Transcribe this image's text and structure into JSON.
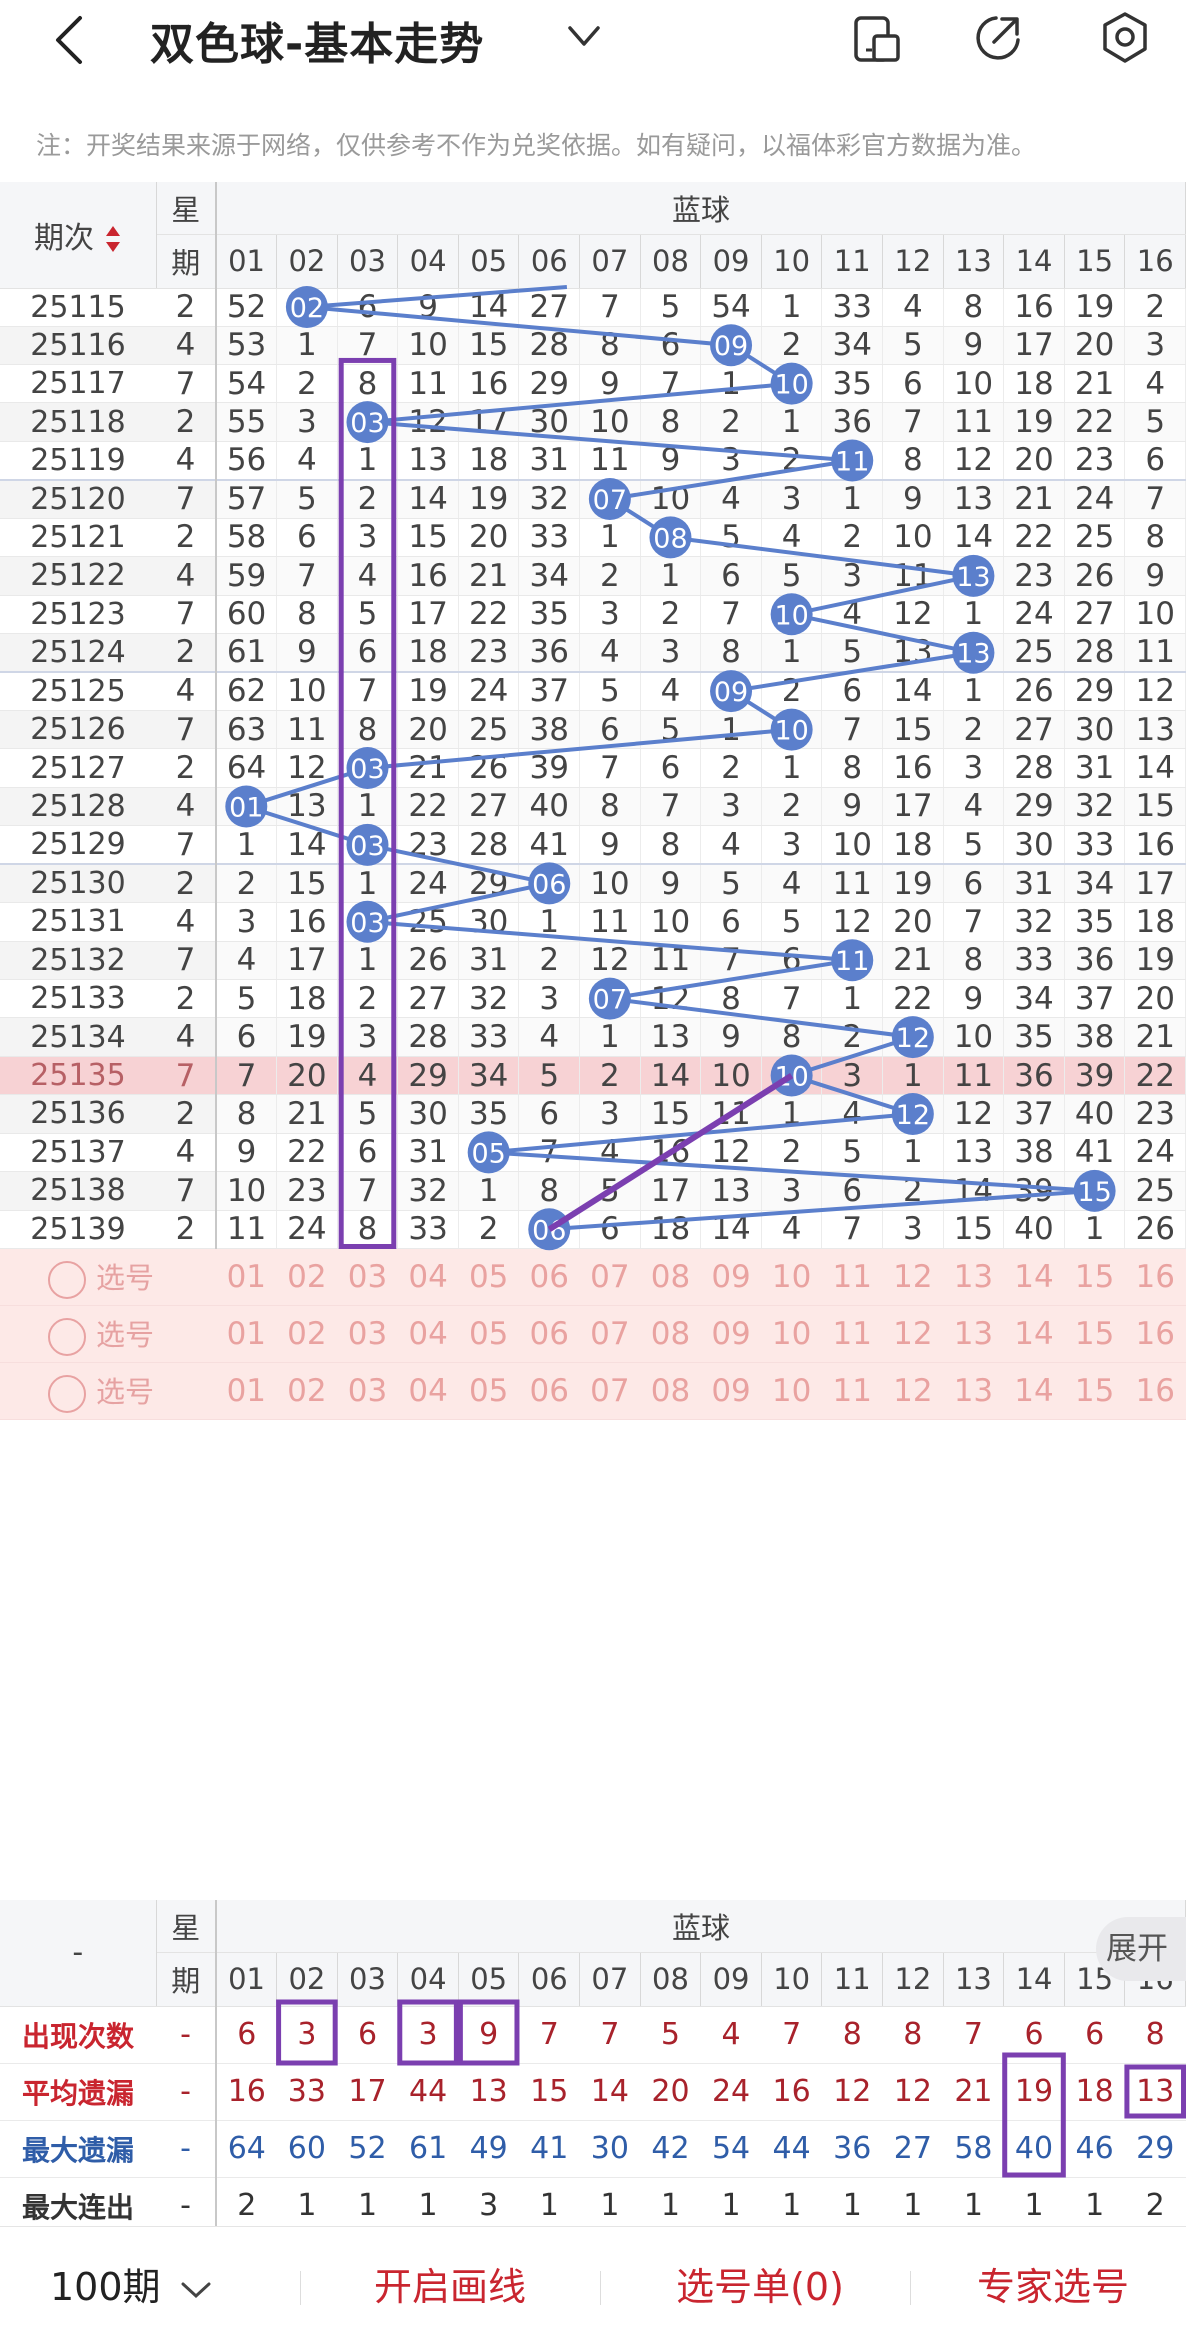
{
  "header": {
    "title": "双色球-基本走势"
  },
  "note": "注：开奖结果来源于网络，仅供参考不作为兑奖依据。如有疑问，以福体彩官方数据为准。",
  "table": {
    "col_period": "期次",
    "col_week_1": "星",
    "col_week_2": "期",
    "group": "蓝球",
    "numbers": [
      "01",
      "02",
      "03",
      "04",
      "05",
      "06",
      "07",
      "08",
      "09",
      "10",
      "11",
      "12",
      "13",
      "14",
      "15",
      "16"
    ],
    "rows": [
      {
        "period": "25115",
        "week": "2",
        "cells": [
          "52",
          "02",
          "6",
          "9",
          "14",
          "27",
          "7",
          "5",
          "54",
          "1",
          "33",
          "4",
          "8",
          "16",
          "19",
          "2"
        ],
        "ball": 2
      },
      {
        "period": "25116",
        "week": "4",
        "cells": [
          "53",
          "1",
          "7",
          "10",
          "15",
          "28",
          "8",
          "6",
          "09",
          "2",
          "34",
          "5",
          "9",
          "17",
          "20",
          "3"
        ],
        "ball": 9
      },
      {
        "period": "25117",
        "week": "7",
        "cells": [
          "54",
          "2",
          "8",
          "11",
          "16",
          "29",
          "9",
          "7",
          "1",
          "10",
          "35",
          "6",
          "10",
          "18",
          "21",
          "4"
        ],
        "ball": 10
      },
      {
        "period": "25118",
        "week": "2",
        "cells": [
          "55",
          "3",
          "03",
          "12",
          "17",
          "30",
          "10",
          "8",
          "2",
          "1",
          "36",
          "7",
          "11",
          "19",
          "22",
          "5"
        ],
        "ball": 3
      },
      {
        "period": "25119",
        "week": "4",
        "cells": [
          "56",
          "4",
          "1",
          "13",
          "18",
          "31",
          "11",
          "9",
          "3",
          "2",
          "11",
          "8",
          "12",
          "20",
          "23",
          "6"
        ],
        "ball": 11
      },
      {
        "period": "25120",
        "week": "7",
        "cells": [
          "57",
          "5",
          "2",
          "14",
          "19",
          "32",
          "07",
          "10",
          "4",
          "3",
          "1",
          "9",
          "13",
          "21",
          "24",
          "7"
        ],
        "ball": 7
      },
      {
        "period": "25121",
        "week": "2",
        "cells": [
          "58",
          "6",
          "3",
          "15",
          "20",
          "33",
          "1",
          "08",
          "5",
          "4",
          "2",
          "10",
          "14",
          "22",
          "25",
          "8"
        ],
        "ball": 8
      },
      {
        "period": "25122",
        "week": "4",
        "cells": [
          "59",
          "7",
          "4",
          "16",
          "21",
          "34",
          "2",
          "1",
          "6",
          "5",
          "3",
          "11",
          "13",
          "23",
          "26",
          "9"
        ],
        "ball": 13
      },
      {
        "period": "25123",
        "week": "7",
        "cells": [
          "60",
          "8",
          "5",
          "17",
          "22",
          "35",
          "3",
          "2",
          "7",
          "10",
          "4",
          "12",
          "1",
          "24",
          "27",
          "10"
        ],
        "ball": 10
      },
      {
        "period": "25124",
        "week": "2",
        "cells": [
          "61",
          "9",
          "6",
          "18",
          "23",
          "36",
          "4",
          "3",
          "8",
          "1",
          "5",
          "13",
          "13",
          "25",
          "28",
          "11"
        ],
        "ball": 13
      },
      {
        "period": "25125",
        "week": "4",
        "cells": [
          "62",
          "10",
          "7",
          "19",
          "24",
          "37",
          "5",
          "4",
          "09",
          "2",
          "6",
          "14",
          "1",
          "26",
          "29",
          "12"
        ],
        "ball": 9
      },
      {
        "period": "25126",
        "week": "7",
        "cells": [
          "63",
          "11",
          "8",
          "20",
          "25",
          "38",
          "6",
          "5",
          "1",
          "10",
          "7",
          "15",
          "2",
          "27",
          "30",
          "13"
        ],
        "ball": 10
      },
      {
        "period": "25127",
        "week": "2",
        "cells": [
          "64",
          "12",
          "03",
          "21",
          "26",
          "39",
          "7",
          "6",
          "2",
          "1",
          "8",
          "16",
          "3",
          "28",
          "31",
          "14"
        ],
        "ball": 3
      },
      {
        "period": "25128",
        "week": "4",
        "cells": [
          "01",
          "13",
          "1",
          "22",
          "27",
          "40",
          "8",
          "7",
          "3",
          "2",
          "9",
          "17",
          "4",
          "29",
          "32",
          "15"
        ],
        "ball": 1
      },
      {
        "period": "25129",
        "week": "7",
        "cells": [
          "1",
          "14",
          "03",
          "23",
          "28",
          "41",
          "9",
          "8",
          "4",
          "3",
          "10",
          "18",
          "5",
          "30",
          "33",
          "16"
        ],
        "ball": 3
      },
      {
        "period": "25130",
        "week": "2",
        "cells": [
          "2",
          "15",
          "1",
          "24",
          "29",
          "06",
          "10",
          "9",
          "5",
          "4",
          "11",
          "19",
          "6",
          "31",
          "34",
          "17"
        ],
        "ball": 6
      },
      {
        "period": "25131",
        "week": "4",
        "cells": [
          "3",
          "16",
          "03",
          "25",
          "30",
          "1",
          "11",
          "10",
          "6",
          "5",
          "12",
          "20",
          "7",
          "32",
          "35",
          "18"
        ],
        "ball": 3
      },
      {
        "period": "25132",
        "week": "7",
        "cells": [
          "4",
          "17",
          "1",
          "26",
          "31",
          "2",
          "12",
          "11",
          "7",
          "6",
          "11",
          "21",
          "8",
          "33",
          "36",
          "19"
        ],
        "ball": 11
      },
      {
        "period": "25133",
        "week": "2",
        "cells": [
          "5",
          "18",
          "2",
          "27",
          "32",
          "3",
          "07",
          "12",
          "8",
          "7",
          "1",
          "22",
          "9",
          "34",
          "37",
          "20"
        ],
        "ball": 7
      },
      {
        "period": "25134",
        "week": "4",
        "cells": [
          "6",
          "19",
          "3",
          "28",
          "33",
          "4",
          "1",
          "13",
          "9",
          "8",
          "2",
          "12",
          "10",
          "35",
          "38",
          "21"
        ],
        "ball": 12
      },
      {
        "period": "25135",
        "week": "7",
        "cells": [
          "7",
          "20",
          "4",
          "29",
          "34",
          "5",
          "2",
          "14",
          "10",
          "10",
          "3",
          "1",
          "11",
          "36",
          "39",
          "22"
        ],
        "ball": 10
      },
      {
        "period": "25136",
        "week": "2",
        "cells": [
          "8",
          "21",
          "5",
          "30",
          "35",
          "6",
          "3",
          "15",
          "11",
          "1",
          "4",
          "12",
          "12",
          "37",
          "40",
          "23"
        ],
        "ball": 12
      },
      {
        "period": "25137",
        "week": "4",
        "cells": [
          "9",
          "22",
          "6",
          "31",
          "05",
          "7",
          "4",
          "16",
          "12",
          "2",
          "5",
          "1",
          "13",
          "38",
          "41",
          "24"
        ],
        "ball": 5
      },
      {
        "period": "25138",
        "week": "7",
        "cells": [
          "10",
          "23",
          "7",
          "32",
          "1",
          "8",
          "5",
          "17",
          "13",
          "3",
          "6",
          "2",
          "14",
          "39",
          "15",
          "25"
        ],
        "ball": 15
      },
      {
        "period": "25139",
        "week": "2",
        "cells": [
          "11",
          "24",
          "8",
          "33",
          "2",
          "06",
          "6",
          "18",
          "14",
          "4",
          "7",
          "3",
          "15",
          "40",
          "1",
          "26"
        ],
        "ball": 6
      }
    ],
    "select_rows": [
      {
        "label": "选号"
      },
      {
        "label": "选号"
      },
      {
        "label": "选号"
      }
    ]
  },
  "stats": {
    "dash": "-",
    "col_week_1": "星",
    "col_week_2": "期",
    "group": "蓝球",
    "expand": "展开",
    "rows": [
      {
        "label": "出现次数",
        "week": "-",
        "values": [
          "6",
          "3",
          "6",
          "3",
          "9",
          "7",
          "7",
          "5",
          "4",
          "7",
          "8",
          "8",
          "7",
          "6",
          "6",
          "8"
        ],
        "style": "red"
      },
      {
        "label": "平均遗漏",
        "week": "-",
        "values": [
          "16",
          "33",
          "17",
          "44",
          "13",
          "15",
          "14",
          "20",
          "24",
          "16",
          "12",
          "12",
          "21",
          "19",
          "18",
          "13"
        ],
        "style": "red"
      },
      {
        "label": "最大遗漏",
        "week": "-",
        "values": [
          "64",
          "60",
          "52",
          "61",
          "49",
          "41",
          "30",
          "42",
          "54",
          "44",
          "36",
          "27",
          "58",
          "40",
          "46",
          "29"
        ],
        "style": "blue"
      },
      {
        "label": "最大连出",
        "week": "-",
        "values": [
          "2",
          "1",
          "1",
          "1",
          "3",
          "1",
          "1",
          "1",
          "1",
          "1",
          "1",
          "1",
          "1",
          "1",
          "1",
          "2"
        ],
        "style": "dark"
      }
    ]
  },
  "bottom": {
    "periods": "100期",
    "draw_line": "开启画线",
    "selection": "选号单(0)",
    "expert": "专家选号"
  },
  "colors": {
    "ball": "#5b7fcc",
    "line": "#5b7fcc",
    "annotation": "#7b3fb0",
    "red": "#c9252f",
    "highlight_row": "#f7d2d4"
  },
  "icons": [
    "back-arrow-icon",
    "chevron-down-icon",
    "phone-switch-icon",
    "share-icon",
    "settings-icon",
    "sort-arrows-icon",
    "radio-circle-icon"
  ]
}
